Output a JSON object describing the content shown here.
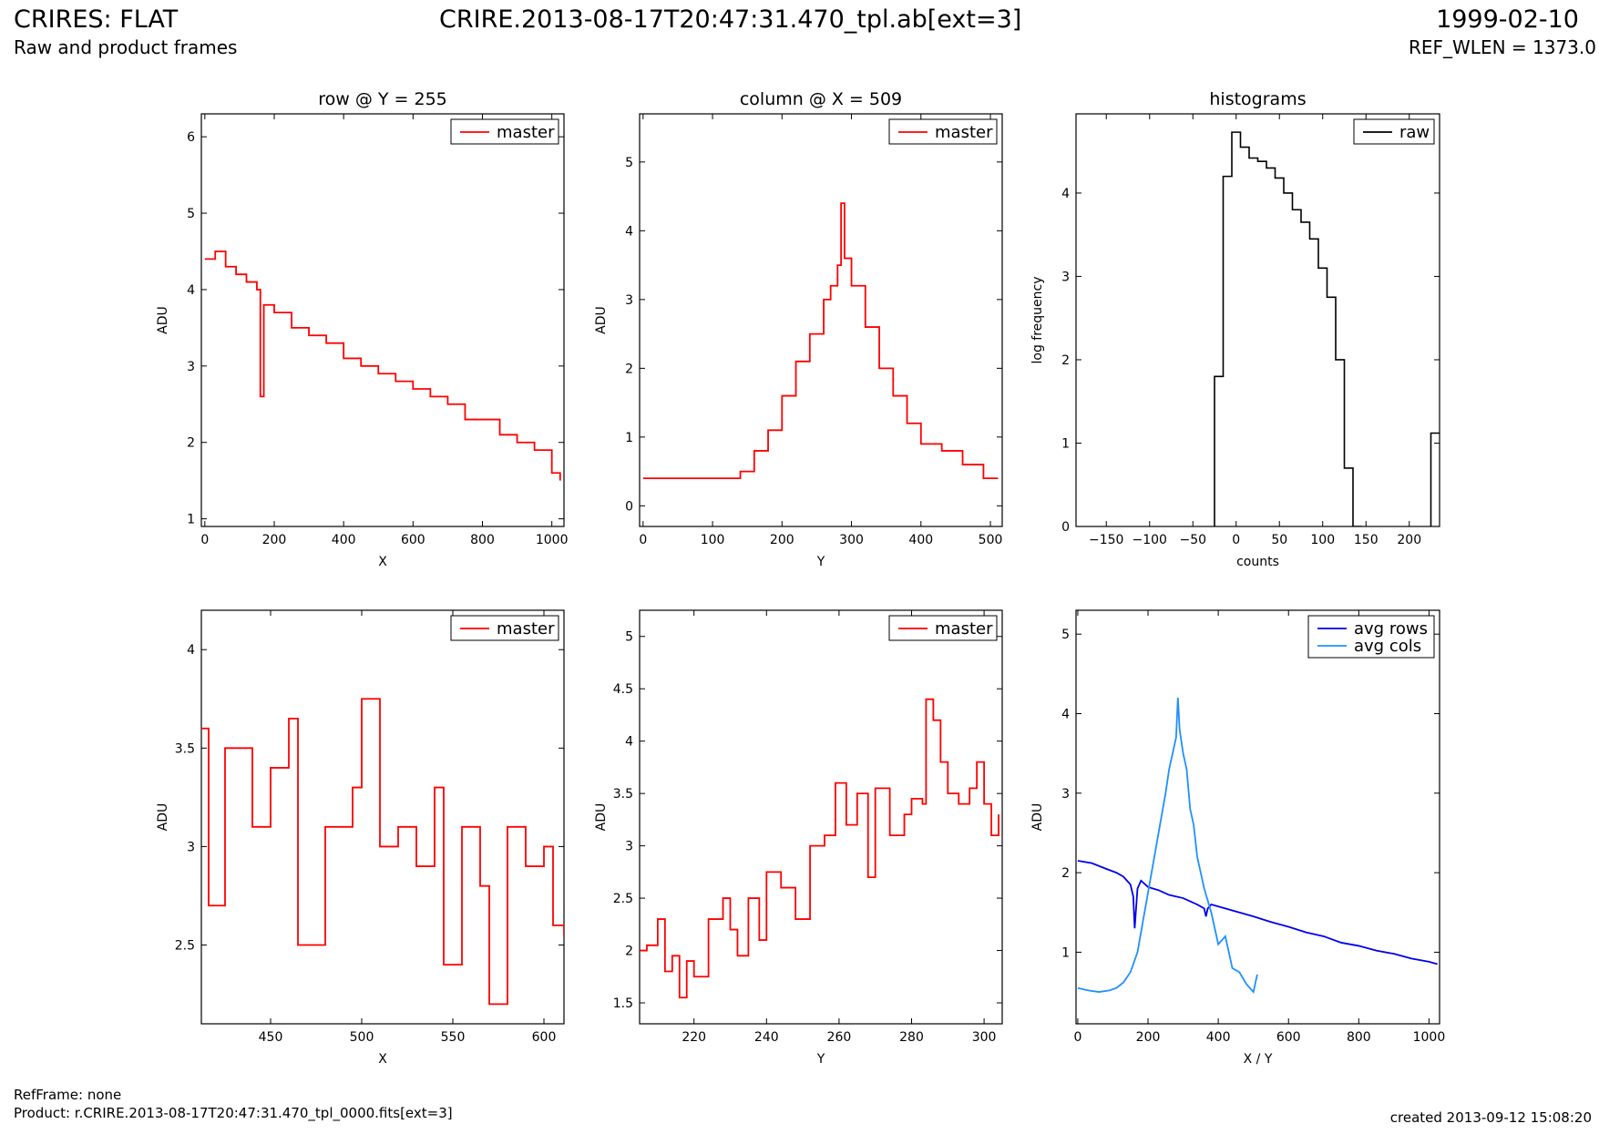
{
  "header": {
    "title": "CRIRES: FLAT",
    "subtitle": "Raw and product frames",
    "file": "CRIRE.2013-08-17T20:47:31.470_tpl.ab[ext=3]",
    "date": "1999-02-10",
    "ref_wlen": "REF_WLEN = 1373.0"
  },
  "footer": {
    "refframe": "RefFrame: none",
    "product": "Product: r.CRIRE.2013-08-17T20:47:31.470_tpl_0000.fits[ext=3]",
    "created": "created 2013-09-12 15:08:20"
  },
  "colors": {
    "master": "#ff0000",
    "raw": "#000000",
    "avg_rows": "#0000ee",
    "avg_cols": "#1e90ff"
  },
  "chart_data": [
    {
      "type": "line",
      "title": "row @ Y = 255",
      "xlabel": "X",
      "ylabel": "ADU",
      "xlim": [
        -10,
        1035
      ],
      "ylim": [
        0.9,
        6.3
      ],
      "xticks": [
        0,
        200,
        400,
        600,
        800,
        1000
      ],
      "yticks": [
        1,
        2,
        3,
        4,
        5,
        6
      ],
      "legend": "top-right",
      "series": [
        {
          "name": "master",
          "style": "step",
          "x": [
            0,
            30,
            60,
            90,
            120,
            150,
            160,
            170,
            200,
            250,
            300,
            350,
            400,
            450,
            500,
            550,
            600,
            650,
            700,
            750,
            800,
            850,
            900,
            950,
            1000,
            1024
          ],
          "y": [
            4.4,
            4.5,
            4.3,
            4.2,
            4.1,
            4.0,
            2.6,
            3.8,
            3.7,
            3.5,
            3.4,
            3.3,
            3.1,
            3.0,
            2.9,
            2.8,
            2.7,
            2.6,
            2.5,
            2.3,
            2.3,
            2.1,
            2.0,
            1.9,
            1.6,
            1.5
          ]
        }
      ]
    },
    {
      "type": "line",
      "title": "column @ X = 509",
      "xlabel": "Y",
      "ylabel": "ADU",
      "xlim": [
        -5,
        517
      ],
      "ylim": [
        -0.3,
        5.7
      ],
      "xticks": [
        0,
        100,
        200,
        300,
        400,
        500
      ],
      "yticks": [
        0,
        1,
        2,
        3,
        4,
        5
      ],
      "legend": "top-right",
      "series": [
        {
          "name": "master",
          "style": "step",
          "x": [
            0,
            40,
            80,
            120,
            140,
            160,
            180,
            200,
            220,
            240,
            260,
            270,
            280,
            285,
            290,
            300,
            320,
            340,
            360,
            380,
            400,
            430,
            460,
            490,
            511
          ],
          "y": [
            0.4,
            0.4,
            0.4,
            0.4,
            0.5,
            0.8,
            1.1,
            1.6,
            2.1,
            2.5,
            3.0,
            3.2,
            3.5,
            4.4,
            3.6,
            3.2,
            2.6,
            2.0,
            1.6,
            1.2,
            0.9,
            0.8,
            0.6,
            0.4,
            0.4
          ]
        }
      ]
    },
    {
      "type": "histogram",
      "title": "histograms",
      "xlabel": "counts",
      "ylabel": "log frequency",
      "xlim": [
        -185,
        235
      ],
      "ylim": [
        0,
        4.95
      ],
      "xticks": [
        -150,
        -100,
        -50,
        0,
        50,
        100,
        150,
        200
      ],
      "yticks": [
        0,
        1,
        2,
        3,
        4
      ],
      "legend": "top-right",
      "series": [
        {
          "name": "raw",
          "bin_edges": [
            -25,
            -15,
            -5,
            5,
            15,
            25,
            35,
            45,
            55,
            65,
            75,
            85,
            95,
            105,
            115,
            125,
            135,
            145
          ],
          "values": [
            1.8,
            4.2,
            4.73,
            4.55,
            4.42,
            4.38,
            4.3,
            4.18,
            4.0,
            3.8,
            3.65,
            3.45,
            3.1,
            2.75,
            2.0,
            0.7,
            0.0
          ]
        }
      ],
      "extra_bin": {
        "edges": [
          225,
          235
        ],
        "value": 1.12
      }
    },
    {
      "type": "line",
      "xlabel": "X",
      "ylabel": "ADU",
      "xlim": [
        412,
        611
      ],
      "ylim": [
        2.1,
        4.2
      ],
      "xticks": [
        450,
        500,
        550,
        600
      ],
      "yticks": [
        2.5,
        3.0,
        3.5,
        4.0
      ],
      "legend": "top-right",
      "series": [
        {
          "name": "master",
          "style": "step",
          "x": [
            412,
            416,
            425,
            440,
            450,
            460,
            465,
            480,
            495,
            500,
            510,
            520,
            530,
            540,
            545,
            555,
            565,
            570,
            580,
            590,
            600,
            605,
            611
          ],
          "y": [
            3.6,
            2.7,
            3.5,
            3.1,
            3.4,
            3.65,
            2.5,
            3.1,
            3.3,
            3.75,
            3.0,
            3.1,
            2.9,
            3.3,
            2.4,
            3.1,
            2.8,
            2.2,
            3.1,
            2.9,
            3.0,
            2.6,
            2.55
          ]
        }
      ]
    },
    {
      "type": "line",
      "xlabel": "Y",
      "ylabel": "ADU",
      "xlim": [
        205,
        305
      ],
      "ylim": [
        1.3,
        5.25
      ],
      "xticks": [
        220,
        240,
        260,
        280,
        300
      ],
      "yticks": [
        1.5,
        2.0,
        2.5,
        3.0,
        3.5,
        4.0,
        4.5,
        5.0
      ],
      "legend": "top-right",
      "series": [
        {
          "name": "master",
          "style": "step",
          "x": [
            205,
            207,
            210,
            212,
            214,
            216,
            218,
            220,
            224,
            228,
            230,
            232,
            235,
            238,
            240,
            244,
            248,
            252,
            256,
            259,
            262,
            265,
            268,
            270,
            274,
            278,
            280,
            283,
            284,
            286,
            288,
            290,
            293,
            296,
            298,
            300,
            302,
            304
          ],
          "y": [
            2.0,
            2.05,
            2.3,
            1.8,
            1.95,
            1.55,
            1.9,
            1.75,
            2.3,
            2.5,
            2.2,
            1.95,
            2.5,
            2.1,
            2.75,
            2.6,
            2.3,
            3.0,
            3.1,
            3.6,
            3.2,
            3.5,
            2.7,
            3.55,
            3.1,
            3.3,
            3.45,
            3.4,
            4.4,
            4.2,
            3.8,
            3.5,
            3.4,
            3.55,
            3.8,
            3.4,
            3.1,
            3.3
          ]
        }
      ]
    },
    {
      "type": "line",
      "xlabel": "X / Y",
      "ylabel": "ADU",
      "xlim": [
        -5,
        1030
      ],
      "ylim": [
        0.1,
        5.3
      ],
      "xticks": [
        0,
        200,
        400,
        600,
        800,
        1000
      ],
      "yticks": [
        1,
        2,
        3,
        4,
        5
      ],
      "legend": "top-right",
      "series": [
        {
          "name": "avg rows",
          "x": [
            0,
            40,
            80,
            110,
            130,
            150,
            158,
            162,
            170,
            180,
            200,
            230,
            260,
            300,
            340,
            360,
            365,
            370,
            380,
            420,
            460,
            500,
            550,
            600,
            650,
            700,
            750,
            800,
            850,
            900,
            950,
            1000,
            1024
          ],
          "y": [
            2.15,
            2.12,
            2.05,
            2.0,
            1.95,
            1.85,
            1.7,
            1.3,
            1.8,
            1.9,
            1.82,
            1.78,
            1.72,
            1.68,
            1.6,
            1.55,
            1.45,
            1.55,
            1.6,
            1.55,
            1.5,
            1.45,
            1.38,
            1.32,
            1.25,
            1.2,
            1.12,
            1.08,
            1.02,
            0.98,
            0.92,
            0.88,
            0.85
          ]
        },
        {
          "name": "avg cols",
          "x": [
            0,
            30,
            60,
            90,
            110,
            130,
            150,
            170,
            190,
            210,
            230,
            250,
            260,
            270,
            280,
            285,
            290,
            300,
            310,
            320,
            330,
            340,
            360,
            380,
            400,
            420,
            440,
            460,
            480,
            500,
            511
          ],
          "y": [
            0.55,
            0.52,
            0.5,
            0.52,
            0.55,
            0.62,
            0.75,
            1.0,
            1.5,
            2.0,
            2.5,
            3.0,
            3.3,
            3.5,
            3.7,
            4.2,
            3.8,
            3.5,
            3.3,
            2.8,
            2.6,
            2.2,
            1.8,
            1.5,
            1.1,
            1.2,
            0.8,
            0.75,
            0.6,
            0.5,
            0.72
          ]
        }
      ]
    }
  ]
}
